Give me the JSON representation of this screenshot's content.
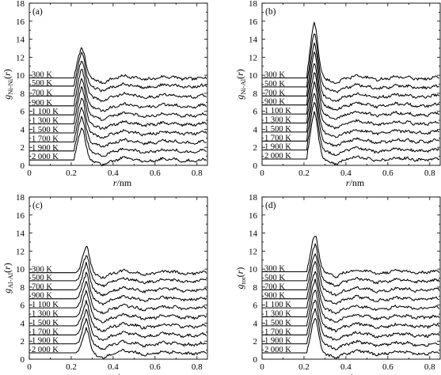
{
  "chart_data": [
    {
      "type": "line",
      "panel_label": "(a)",
      "ylabel_main": "g",
      "ylabel_sub": "Ni-Ni",
      "ylabel_suffix": "(r)",
      "xlabel_main": "r",
      "xlabel_unit": "/nm",
      "xlim": [
        0,
        0.85
      ],
      "ylim": [
        0,
        18
      ],
      "xticks": [
        "0",
        "0.2",
        "0.4",
        "0.6",
        "0.8"
      ],
      "yticks": [
        "0",
        "2",
        "4",
        "6",
        "8",
        "10",
        "12",
        "14",
        "16",
        "18"
      ],
      "peak_r": 0.248,
      "onset_r": 0.215,
      "series": [
        {
          "name": "300 K",
          "baseline": 9.7,
          "peak": 12.8
        },
        {
          "name": "500 K",
          "baseline": 8.8,
          "peak": 12.2
        },
        {
          "name": "700 K",
          "baseline": 7.7,
          "peak": 11.4
        },
        {
          "name": "900 K",
          "baseline": 6.6,
          "peak": 10.4
        },
        {
          "name": "1 100 K",
          "baseline": 5.6,
          "peak": 9.3
        },
        {
          "name": "1 300 K",
          "baseline": 4.6,
          "peak": 8.3
        },
        {
          "name": "1 500 K",
          "baseline": 3.6,
          "peak": 7.2
        },
        {
          "name": "1 700 K",
          "baseline": 2.6,
          "peak": 6.1
        },
        {
          "name": "1 900 K",
          "baseline": 1.6,
          "peak": 5.0
        },
        {
          "name": "2 000 K",
          "baseline": 0.6,
          "peak": 3.9
        }
      ]
    },
    {
      "type": "line",
      "panel_label": "(b)",
      "ylabel_main": "g",
      "ylabel_sub": "Ni-Al",
      "ylabel_suffix": "(r)",
      "xlabel_main": "r",
      "xlabel_unit": "/nm",
      "xlim": [
        0,
        0.85
      ],
      "ylim": [
        0,
        18
      ],
      "xticks": [
        "0",
        "0.2",
        "0.4",
        "0.6",
        "0.8"
      ],
      "yticks": [
        "0",
        "2",
        "4",
        "6",
        "8",
        "10",
        "12",
        "14",
        "16",
        "18"
      ],
      "peak_r": 0.248,
      "onset_r": 0.215,
      "series": [
        {
          "name": "300 K",
          "baseline": 9.7,
          "peak": 15.5
        },
        {
          "name": "500 K",
          "baseline": 8.7,
          "peak": 14.4
        },
        {
          "name": "700 K",
          "baseline": 7.7,
          "peak": 13.3
        },
        {
          "name": "900 K",
          "baseline": 6.7,
          "peak": 12.2
        },
        {
          "name": "1 100 K",
          "baseline": 5.7,
          "peak": 11.1
        },
        {
          "name": "1 300 K",
          "baseline": 4.7,
          "peak": 10.0
        },
        {
          "name": "1 500 K",
          "baseline": 3.7,
          "peak": 8.9
        },
        {
          "name": "1 700 K",
          "baseline": 2.7,
          "peak": 7.8
        },
        {
          "name": "1 900 K",
          "baseline": 1.7,
          "peak": 6.7
        },
        {
          "name": "2 000 K",
          "baseline": 0.7,
          "peak": 5.6
        }
      ]
    },
    {
      "type": "line",
      "panel_label": "(c)",
      "ylabel_main": "g",
      "ylabel_sub": "Al-Al",
      "ylabel_suffix": "(r)",
      "xlabel_main": "r",
      "xlabel_unit": "/nm",
      "xlim": [
        0,
        0.85
      ],
      "ylim": [
        0,
        18
      ],
      "xticks": [
        "0",
        "0.2",
        "0.4",
        "0.6",
        "0.8"
      ],
      "yticks": [
        "0",
        "2",
        "4",
        "6",
        "8",
        "10",
        "12",
        "14",
        "16",
        "18"
      ],
      "peak_r": 0.27,
      "onset_r": 0.225,
      "series": [
        {
          "name": "300 K",
          "baseline": 9.6,
          "peak": 12.3
        },
        {
          "name": "500 K",
          "baseline": 8.7,
          "peak": 11.3
        },
        {
          "name": "700 K",
          "baseline": 7.7,
          "peak": 10.3
        },
        {
          "name": "900 K",
          "baseline": 6.7,
          "peak": 9.2
        },
        {
          "name": "1 100 K",
          "baseline": 5.7,
          "peak": 8.2
        },
        {
          "name": "1 300 K",
          "baseline": 4.7,
          "peak": 7.2
        },
        {
          "name": "1 500 K",
          "baseline": 3.7,
          "peak": 6.1
        },
        {
          "name": "1 700 K",
          "baseline": 2.7,
          "peak": 5.1
        },
        {
          "name": "1 900 K",
          "baseline": 1.7,
          "peak": 4.1
        },
        {
          "name": "2 000 K",
          "baseline": 0.7,
          "peak": 3.1
        }
      ]
    },
    {
      "type": "line",
      "panel_label": "(d)",
      "ylabel_main": "g",
      "ylabel_sub": "tot",
      "ylabel_suffix": "(r)",
      "xlabel_main": "r",
      "xlabel_unit": "/nm",
      "xlim": [
        0,
        0.85
      ],
      "ylim": [
        0,
        18
      ],
      "xticks": [
        "0",
        "0.2",
        "0.4",
        "0.6",
        "0.8"
      ],
      "yticks": [
        "0",
        "2",
        "4",
        "6",
        "8",
        "10",
        "12",
        "14",
        "16",
        "18"
      ],
      "peak_r": 0.25,
      "onset_r": 0.215,
      "series": [
        {
          "name": "300 K",
          "baseline": 9.7,
          "peak": 13.5
        },
        {
          "name": "500 K",
          "baseline": 8.7,
          "peak": 12.5
        },
        {
          "name": "700 K",
          "baseline": 7.7,
          "peak": 11.5
        },
        {
          "name": "900 K",
          "baseline": 6.7,
          "peak": 10.5
        },
        {
          "name": "1 100 K",
          "baseline": 5.7,
          "peak": 9.5
        },
        {
          "name": "1 300 K",
          "baseline": 4.7,
          "peak": 8.5
        },
        {
          "name": "1 500 K",
          "baseline": 3.7,
          "peak": 7.4
        },
        {
          "name": "1 700 K",
          "baseline": 2.7,
          "peak": 6.4
        },
        {
          "name": "1 900 K",
          "baseline": 1.7,
          "peak": 5.3
        },
        {
          "name": "2 000 K",
          "baseline": 0.7,
          "peak": 4.3
        }
      ]
    }
  ]
}
